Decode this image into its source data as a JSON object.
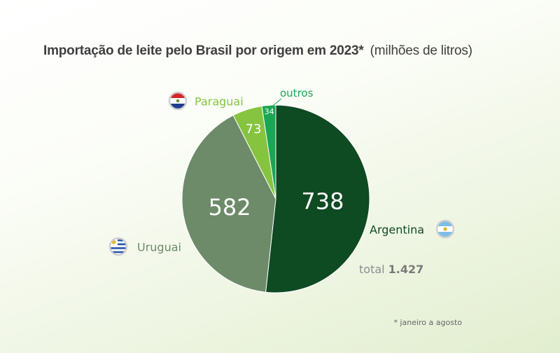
{
  "title": "Importação de leite pelo Brasil por origem em 2023*",
  "title_unit": "(milhões de litros)",
  "footnote": "* janeiro a agosto",
  "total_label": "total",
  "total_value": "1.427",
  "colors": {
    "Argentina": "#0e4a22",
    "Uruguai": "#6d8a69",
    "Paraguai": "#86c440",
    "outros": "#1ba653"
  },
  "flag_icons": {
    "Argentina": "argentina-flag-icon",
    "Uruguai": "uruguay-flag-icon",
    "Paraguai": "paraguay-flag-icon"
  },
  "chart_data": {
    "type": "pie",
    "title": "Importação de leite pelo Brasil por origem em 2023*",
    "unit": "milhões de litros",
    "total": 1427,
    "slices": [
      {
        "label": "Argentina",
        "value": 738
      },
      {
        "label": "Uruguai",
        "value": 582
      },
      {
        "label": "Paraguai",
        "value": 73
      },
      {
        "label": "outros",
        "value": 34
      }
    ]
  }
}
